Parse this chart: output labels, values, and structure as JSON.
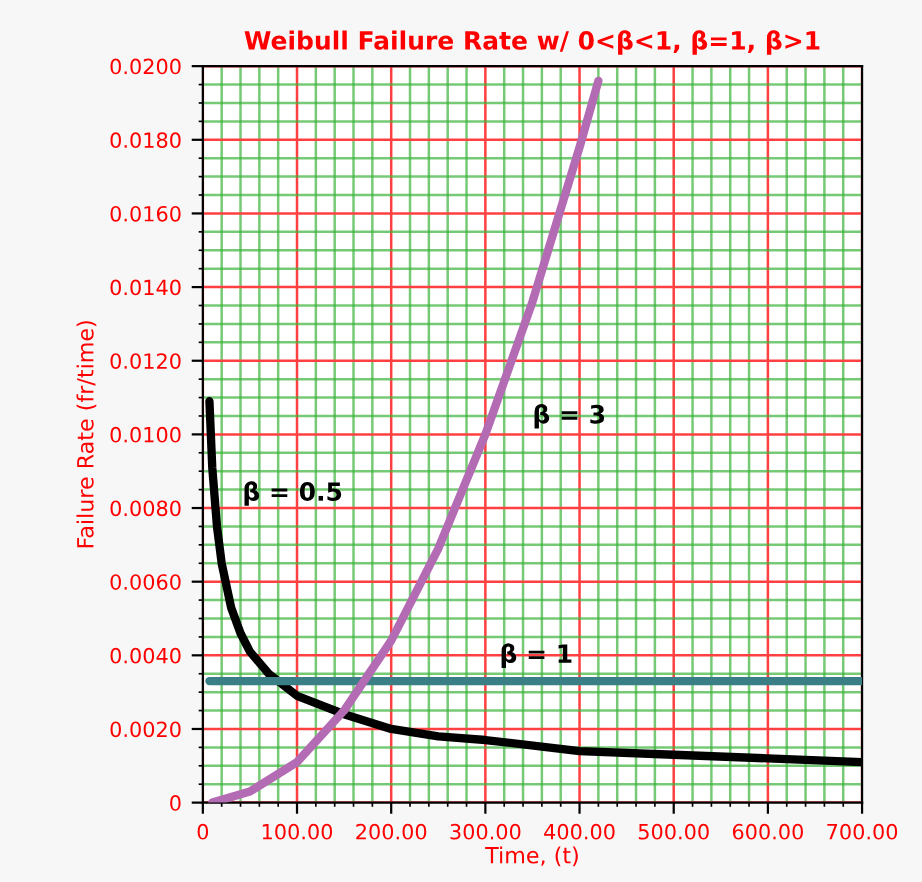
{
  "chart_data": {
    "type": "line",
    "title": "Weibull Failure Rate w/ 0<β<1, β=1, β>1",
    "xlabel": "Time, (t)",
    "ylabel": "Failure Rate (fr/time)",
    "series": [
      {
        "color": "#000000",
        "x": [
          7,
          10,
          15,
          20,
          30,
          40,
          50,
          70,
          100,
          150,
          200,
          250,
          300,
          400,
          500,
          600,
          700
        ],
        "values": [
          0.0109,
          0.0091,
          0.0075,
          0.0065,
          0.0053,
          0.0046,
          0.0041,
          0.0035,
          0.0029,
          0.0024,
          0.002,
          0.0018,
          0.0017,
          0.0014,
          0.0013,
          0.0012,
          0.0011
        ]
      },
      {
        "color": "#3a7f86",
        "x": [
          7,
          700
        ],
        "values": [
          0.0033,
          0.0033
        ]
      },
      {
        "color": "#b36cb3",
        "x": [
          10,
          50,
          100,
          150,
          200,
          250,
          300,
          350,
          400,
          420
        ],
        "values": [
          0.0,
          0.0003,
          0.0011,
          0.0025,
          0.0044,
          0.0069,
          0.01,
          0.0136,
          0.0178,
          0.0196
        ]
      }
    ],
    "annotations": [
      "β = 0.5",
      "β = 3",
      "β = 1"
    ],
    "xlim": [
      0,
      700
    ],
    "ylim": [
      0,
      0.02
    ],
    "xticks": [
      0,
      {
        "value": 20,
        "label": null
      },
      {
        "value": 40,
        "label": null
      },
      {
        "value": 60,
        "label": null
      },
      {
        "value": 80,
        "label": null
      },
      {
        "value": 100,
        "label": "100.00"
      },
      {
        "value": 120,
        "label": null
      },
      {
        "value": 140,
        "label": null
      },
      {
        "value": 160,
        "label": null
      },
      {
        "value": 180,
        "label": null
      },
      {
        "value": 200,
        "label": "200.00"
      },
      {
        "value": 220,
        "label": null
      },
      {
        "value": 240,
        "label": null
      },
      {
        "value": 260,
        "label": null
      },
      {
        "value": 280,
        "label": null
      },
      {
        "value": 300,
        "label": "300.00"
      },
      {
        "value": 320,
        "label": null
      },
      {
        "value": 340,
        "label": null
      },
      {
        "value": 360,
        "label": null
      },
      {
        "value": 380,
        "label": null
      },
      {
        "value": 400,
        "label": "400.00"
      },
      {
        "value": 420,
        "label": null
      },
      {
        "value": 440,
        "label": null
      },
      {
        "value": 460,
        "label": null
      },
      {
        "value": 480,
        "label": null
      },
      {
        "value": 500,
        "label": "500.00"
      },
      {
        "value": 520,
        "label": null
      },
      {
        "value": 540,
        "label": null
      },
      {
        "value": 560,
        "label": null
      },
      {
        "value": 580,
        "label": null
      },
      {
        "value": 600,
        "label": "600.00"
      },
      {
        "value": 620,
        "label": null
      },
      {
        "value": 640,
        "label": null
      },
      {
        "value": 660,
        "label": null
      },
      {
        "value": 680,
        "label": null
      },
      {
        "value": 700,
        "label": "700.00"
      }
    ],
    "yticks": [
      0,
      {
        "value": 0.0005,
        "label": null
      },
      {
        "value": 0.001,
        "label": null
      },
      {
        "value": 0.0015,
        "label": null
      },
      {
        "value": 0.002,
        "label": "0.0020"
      },
      {
        "value": 0.0025,
        "label": null
      },
      {
        "value": 0.003,
        "label": null
      },
      {
        "value": 0.0035,
        "label": null
      },
      {
        "value": 0.004,
        "label": "0.0040"
      },
      {
        "value": 0.0045,
        "label": null
      },
      {
        "value": 0.005,
        "label": null
      },
      {
        "value": 0.0055,
        "label": null
      },
      {
        "value": 0.006,
        "label": "0.0060"
      },
      {
        "value": 0.0065,
        "label": null
      },
      {
        "value": 0.007,
        "label": null
      },
      {
        "value": 0.0075,
        "label": null
      },
      {
        "value": 0.008,
        "label": "0.0080"
      },
      {
        "value": 0.0085,
        "label": null
      },
      {
        "value": 0.009,
        "label": null
      },
      {
        "value": 0.0095,
        "label": null
      },
      {
        "value": 0.01,
        "label": "0.0100"
      },
      {
        "value": 0.0105,
        "label": null
      },
      {
        "value": 0.011,
        "label": null
      },
      {
        "value": 0.0115,
        "label": null
      },
      {
        "value": 0.012,
        "label": "0.0120"
      },
      {
        "value": 0.0125,
        "label": null
      },
      {
        "value": 0.013,
        "label": null
      },
      {
        "value": 0.0135,
        "label": null
      },
      {
        "value": 0.014,
        "label": "0.0140"
      },
      {
        "value": 0.0145,
        "label": null
      },
      {
        "value": 0.015,
        "label": null
      },
      {
        "value": 0.0155,
        "label": null
      },
      {
        "value": 0.016,
        "label": "0.0160"
      },
      {
        "value": 0.0165,
        "label": null
      },
      {
        "value": 0.017,
        "label": null
      },
      {
        "value": 0.0175,
        "label": null
      },
      {
        "value": 0.018,
        "label": "0.0180"
      },
      {
        "value": 0.0185,
        "label": null
      },
      {
        "value": 0.019,
        "label": null
      },
      {
        "value": 0.0195,
        "label": null
      },
      {
        "value": 0.02,
        "label": "0.0200"
      }
    ],
    "grid": true,
    "marker": "none",
    "line_style": "solid"
  }
}
